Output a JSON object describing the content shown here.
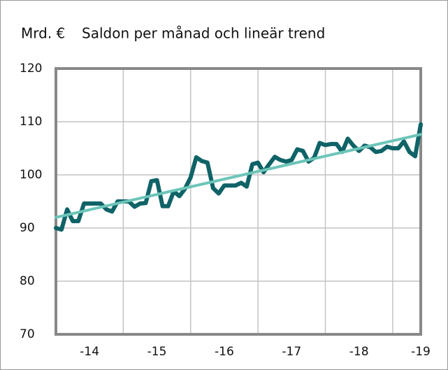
{
  "chart_data": {
    "type": "line",
    "y_label": "Mrd. €",
    "title": "Saldon per månad och lineär trend",
    "xlim": [
      0,
      65
    ],
    "xticks": [
      {
        "value": 6,
        "label": "-14"
      },
      {
        "value": 18,
        "label": "-15"
      },
      {
        "value": 30,
        "label": "-16"
      },
      {
        "value": 42,
        "label": "-17"
      },
      {
        "value": 54,
        "label": "-18"
      },
      {
        "value": 65,
        "label": "-19"
      }
    ],
    "xgrid": [
      12,
      24,
      36,
      48,
      60
    ],
    "ylim": [
      70,
      120
    ],
    "yticks": [
      70,
      80,
      90,
      100,
      110,
      120
    ],
    "grid": true,
    "series": [
      {
        "color": "#0f6367",
        "values": [
          90.0,
          89.7,
          93.5,
          91.3,
          91.3,
          94.6,
          94.6,
          94.6,
          94.6,
          93.5,
          93.1,
          95.0,
          95.0,
          95.0,
          94.0,
          94.6,
          94.7,
          98.8,
          99.0,
          94.1,
          94.1,
          96.9,
          96.0,
          97.4,
          99.5,
          103.3,
          102.6,
          102.3,
          97.5,
          96.5,
          98.0,
          98.0,
          98.0,
          98.5,
          97.8,
          102.0,
          102.3,
          100.5,
          102.0,
          103.4,
          102.8,
          102.5,
          102.8,
          104.8,
          104.5,
          102.5,
          103.2,
          106.0,
          105.6,
          105.8,
          105.8,
          104.3,
          106.8,
          105.5,
          104.5,
          105.5,
          105.2,
          104.3,
          104.5,
          105.3,
          105.0,
          105.0,
          106.3,
          104.3,
          103.5,
          109.5
        ]
      },
      {
        "color": "#6cc5b8",
        "x": [
          0,
          65
        ],
        "values": [
          92.0,
          107.6
        ]
      }
    ]
  }
}
